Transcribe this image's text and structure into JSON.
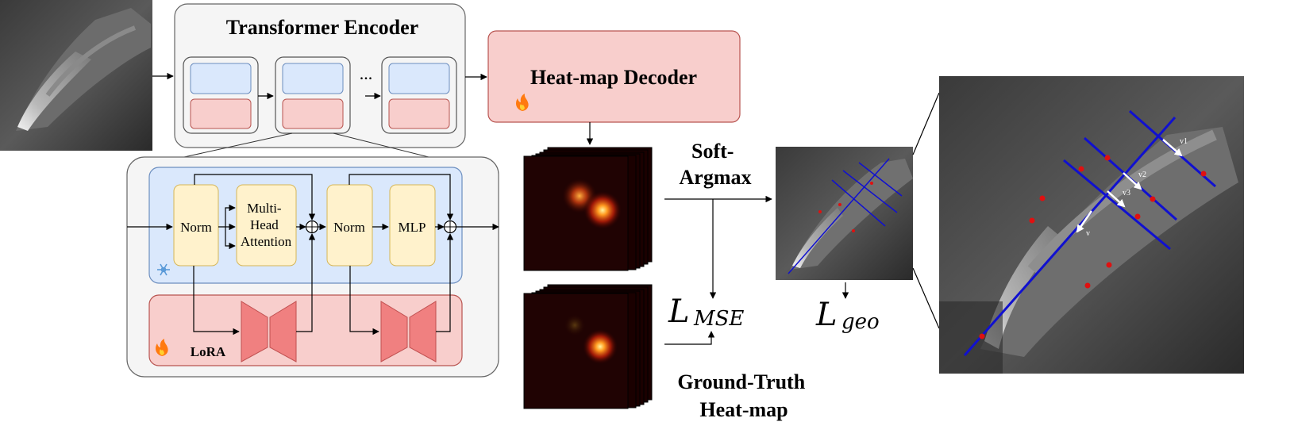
{
  "encoder": {
    "title": "Transformer Encoder",
    "ellipsis": "..."
  },
  "decoder": {
    "title": "Heat-map Decoder"
  },
  "block": {
    "norm1": "Norm",
    "attention": [
      "Multi-",
      "Head",
      "Attention"
    ],
    "norm2": "Norm",
    "mlp": "MLP",
    "lora": "LoRA"
  },
  "soft_argmax": [
    "Soft-",
    "Argmax"
  ],
  "ground_truth": [
    "Ground-Truth",
    "Heat-map"
  ],
  "loss_mse": {
    "symbol": "L",
    "subscript": "MSE"
  },
  "loss_geo": {
    "symbol": "L",
    "subscript": "geo"
  },
  "vector_labels": [
    "v1",
    "v2",
    "v3",
    "v"
  ],
  "colors": {
    "frozen_blue": "#dae8fc",
    "frozen_border": "#6c8ebf",
    "trainable_red": "#f8cecc",
    "trainable_border": "#b85450",
    "norm_yellow": "#fff2cc",
    "norm_border": "#d6b656",
    "lora_trapezoid": "#f08080",
    "axis_line": "#1010d0",
    "landmark": "#e01010"
  }
}
